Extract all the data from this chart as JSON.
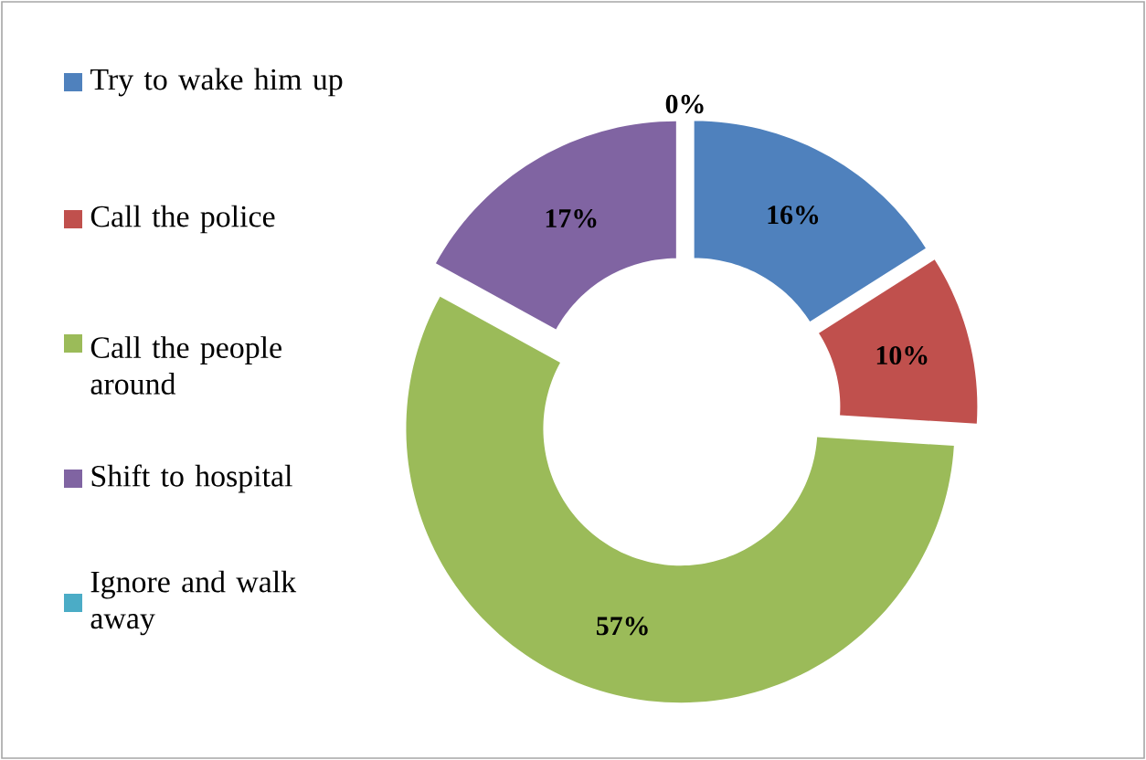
{
  "chart_data": {
    "type": "donut",
    "categories": [
      "Try to wake him up",
      "Call the police",
      "Call the people around",
      "Shift to hospital",
      "Ignore and walk away"
    ],
    "values": [
      16,
      10,
      57,
      17,
      0
    ],
    "colors": [
      "#4f81bd",
      "#c0504d",
      "#9bbb59",
      "#8064a2",
      "#4bacc6"
    ],
    "value_labels": [
      "16%",
      "10%",
      "57%",
      "17%",
      "0%"
    ],
    "legend": "left"
  }
}
